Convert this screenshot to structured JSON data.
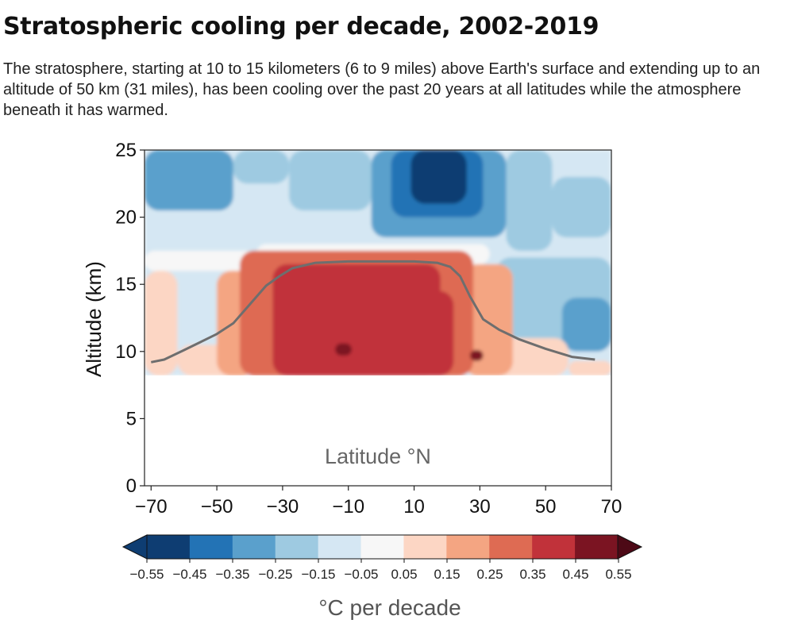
{
  "header": {
    "title": "Stratospheric cooling per decade, 2002-2019",
    "subtitle": "The stratosphere, starting at 10 to 15 kilometers (6 to 9 miles) above Earth's surface and extending up to an altitude of 50 km (31 miles), has been cooling over the past 20 years at all latitudes while the atmosphere beneath it has warmed."
  },
  "chart_data": {
    "type": "heatmap",
    "title": "Stratospheric cooling per decade, 2002-2019",
    "xlabel": "Latitude °N",
    "ylabel": "Altitude (km)",
    "xlim": [
      -72,
      70
    ],
    "ylim": [
      0,
      25
    ],
    "x_ticks": [
      -70,
      -50,
      -30,
      -10,
      10,
      30,
      50,
      70
    ],
    "x_tick_labels": [
      "−70",
      "−50",
      "−30",
      "−10",
      "10",
      "30",
      "50",
      "70"
    ],
    "y_ticks": [
      0,
      5,
      10,
      15,
      20,
      25
    ],
    "y_tick_labels": [
      "0",
      "5",
      "10",
      "15",
      "20",
      "25"
    ],
    "data_altitude_range": [
      8.2,
      25
    ],
    "grid": false,
    "tropopause_line": {
      "color": "#6e6e6e",
      "points": [
        [
          -70,
          9.2
        ],
        [
          -66,
          9.4
        ],
        [
          -60,
          10.1
        ],
        [
          -55,
          10.7
        ],
        [
          -50,
          11.3
        ],
        [
          -45,
          12.1
        ],
        [
          -40,
          13.5
        ],
        [
          -35,
          14.9
        ],
        [
          -31,
          15.6
        ],
        [
          -27,
          16.2
        ],
        [
          -20,
          16.6
        ],
        [
          -10,
          16.7
        ],
        [
          0,
          16.7
        ],
        [
          10,
          16.7
        ],
        [
          17,
          16.6
        ],
        [
          21,
          16.3
        ],
        [
          24,
          15.6
        ],
        [
          27,
          14.1
        ],
        [
          31,
          12.4
        ],
        [
          36,
          11.6
        ],
        [
          42,
          10.9
        ],
        [
          50,
          10.2
        ],
        [
          58,
          9.6
        ],
        [
          65,
          9.4
        ]
      ]
    },
    "colorbar": {
      "label": "°C per decade",
      "extend": "both",
      "boundaries": [
        -0.55,
        -0.45,
        -0.35,
        -0.25,
        -0.15,
        -0.05,
        0.05,
        0.15,
        0.25,
        0.35,
        0.45,
        0.55
      ],
      "tick_labels": [
        "−0.55",
        "−0.45",
        "−0.35",
        "−0.25",
        "−0.15",
        "−0.05",
        "0.05",
        "0.15",
        "0.25",
        "0.35",
        "0.45",
        "0.55"
      ],
      "colors": [
        "#0e3d72",
        "#2373b5",
        "#5aa0cc",
        "#9ecae1",
        "#d5e7f3",
        "#f7f7f7",
        "#fcd6c4",
        "#f4a582",
        "#de6b53",
        "#c1323a",
        "#7b1422"
      ],
      "under_color": "#0e3d72",
      "over_color": "#4d0916"
    },
    "contour_regions": [
      {
        "lat_min": -72,
        "lat_max": 70,
        "alt_min": 8.2,
        "alt_max": 25,
        "value": -0.1
      },
      {
        "lat_min": -72,
        "lat_max": -45,
        "alt_min": 20.5,
        "alt_max": 25,
        "value": -0.3
      },
      {
        "lat_min": -72,
        "lat_max": -55,
        "alt_min": 23,
        "alt_max": 25,
        "value": -0.3
      },
      {
        "lat_min": -45,
        "lat_max": -28,
        "alt_min": 22.5,
        "alt_max": 25,
        "value": -0.2
      },
      {
        "lat_min": -28,
        "lat_max": -3,
        "alt_min": 20.5,
        "alt_max": 25,
        "value": -0.2
      },
      {
        "lat_min": -3,
        "lat_max": 38,
        "alt_min": 18.5,
        "alt_max": 25,
        "value": -0.3
      },
      {
        "lat_min": 3,
        "lat_max": 31,
        "alt_min": 20,
        "alt_max": 25,
        "value": -0.4
      },
      {
        "lat_min": 9,
        "lat_max": 26,
        "alt_min": 21,
        "alt_max": 25,
        "value": -0.5
      },
      {
        "lat_min": 38,
        "lat_max": 52,
        "alt_min": 17.5,
        "alt_max": 25,
        "value": -0.2
      },
      {
        "lat_min": 52,
        "lat_max": 70,
        "alt_min": 18.5,
        "alt_max": 23,
        "value": -0.2
      },
      {
        "lat_min": 35,
        "lat_max": 70,
        "alt_min": 10.5,
        "alt_max": 17,
        "value": -0.2
      },
      {
        "lat_min": 55,
        "lat_max": 70,
        "alt_min": 10,
        "alt_max": 14,
        "value": -0.3
      },
      {
        "lat_min": -60,
        "lat_max": -50,
        "alt_min": 11.8,
        "alt_max": 13.2,
        "value": -0.1
      },
      {
        "lat_min": -72,
        "lat_max": -38,
        "alt_min": 16,
        "alt_max": 17.5,
        "value": 0.0
      },
      {
        "lat_min": -38,
        "lat_max": 33,
        "alt_min": 16.5,
        "alt_max": 18,
        "value": 0.0
      },
      {
        "lat_min": -72,
        "lat_max": -62,
        "alt_min": 8.2,
        "alt_max": 16,
        "value": 0.1
      },
      {
        "lat_min": -62,
        "lat_max": -38,
        "alt_min": 8.2,
        "alt_max": 10.5,
        "value": 0.1
      },
      {
        "lat_min": 33,
        "lat_max": 57,
        "alt_min": 8.2,
        "alt_max": 11,
        "value": 0.1
      },
      {
        "lat_min": 57,
        "lat_max": 70,
        "alt_min": 8.2,
        "alt_max": 9.3,
        "value": 0.1
      },
      {
        "lat_min": -50,
        "lat_max": -38,
        "alt_min": 8.2,
        "alt_max": 16,
        "value": 0.2
      },
      {
        "lat_min": 25,
        "lat_max": 40,
        "alt_min": 8.2,
        "alt_max": 16.5,
        "value": 0.2
      },
      {
        "lat_min": -43,
        "lat_max": 28,
        "alt_min": 8.2,
        "alt_max": 17.5,
        "value": 0.3
      },
      {
        "lat_min": -33,
        "lat_max": 18,
        "alt_min": 8.2,
        "alt_max": 16.5,
        "value": 0.4
      },
      {
        "lat_min": -30,
        "lat_max": 22,
        "alt_min": 8.2,
        "alt_max": 14.5,
        "value": 0.4
      },
      {
        "lat_min": -14,
        "lat_max": -9,
        "alt_min": 9.7,
        "alt_max": 10.6,
        "value": 0.5
      },
      {
        "lat_min": 27,
        "lat_max": 31,
        "alt_min": 9.3,
        "alt_max": 10.1,
        "value": 0.5
      }
    ]
  }
}
